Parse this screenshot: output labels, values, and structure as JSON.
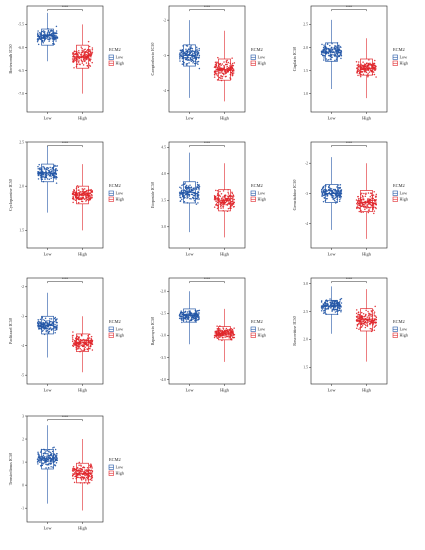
{
  "legend": {
    "title": "ECM2",
    "groups": [
      "Low",
      "High"
    ]
  },
  "colors": {
    "low": "#2457a6",
    "high": "#e0262b"
  },
  "chart_data": [
    {
      "type": "box",
      "ylabel": "Bortezomib IC50",
      "significance": "***",
      "categories": [
        "Low",
        "High"
      ],
      "ylim": [
        -7.4,
        -5.1
      ],
      "yticks": [
        -7.5,
        -7.0,
        -6.5,
        -6.0,
        -5.5
      ],
      "series": [
        {
          "name": "Low",
          "q1": -5.95,
          "median": -5.75,
          "q3": -5.6,
          "whisker_low": -6.3,
          "whisker_high": -5.25
        },
        {
          "name": "High",
          "q1": -6.45,
          "median": -6.2,
          "q3": -5.95,
          "whisker_low": -7.0,
          "whisker_high": -5.5
        }
      ]
    },
    {
      "type": "box",
      "ylabel": "Camptothecin IC50",
      "significance": "***",
      "categories": [
        "Low",
        "High"
      ],
      "ylim": [
        -4.6,
        -1.6
      ],
      "yticks": [
        -4,
        -3,
        -2
      ],
      "series": [
        {
          "name": "Low",
          "q1": -3.3,
          "median": -3.0,
          "q3": -2.7,
          "whisker_low": -4.2,
          "whisker_high": -2.0
        },
        {
          "name": "High",
          "q1": -3.7,
          "median": -3.4,
          "q3": -3.1,
          "whisker_low": -4.3,
          "whisker_high": -2.3
        }
      ]
    },
    {
      "type": "box",
      "ylabel": "Cisplatin IC50",
      "significance": "***",
      "categories": [
        "Low",
        "High"
      ],
      "ylim": [
        0.6,
        2.9
      ],
      "yticks": [
        1.0,
        1.5,
        2.0,
        2.5
      ],
      "series": [
        {
          "name": "Low",
          "q1": 1.7,
          "median": 1.9,
          "q3": 2.1,
          "whisker_low": 1.1,
          "whisker_high": 2.6
        },
        {
          "name": "High",
          "q1": 1.4,
          "median": 1.55,
          "q3": 1.75,
          "whisker_low": 0.9,
          "whisker_high": 2.2
        }
      ]
    },
    {
      "type": "box",
      "ylabel": "Cyclopamine IC50",
      "significance": "***",
      "categories": [
        "Low",
        "High"
      ],
      "ylim": [
        1.3,
        2.5
      ],
      "yticks": [
        1.5,
        2.0,
        2.5
      ],
      "series": [
        {
          "name": "Low",
          "q1": 2.05,
          "median": 2.15,
          "q3": 2.25,
          "whisker_low": 1.7,
          "whisker_high": 2.45
        },
        {
          "name": "High",
          "q1": 1.8,
          "median": 1.9,
          "q3": 2.0,
          "whisker_low": 1.5,
          "whisker_high": 2.25
        }
      ]
    },
    {
      "type": "box",
      "ylabel": "Etoposide IC50",
      "significance": "***",
      "categories": [
        "Low",
        "High"
      ],
      "ylim": [
        2.6,
        4.6
      ],
      "yticks": [
        3.0,
        3.5,
        4.0,
        4.5
      ],
      "series": [
        {
          "name": "Low",
          "q1": 3.45,
          "median": 3.65,
          "q3": 3.85,
          "whisker_low": 2.9,
          "whisker_high": 4.4
        },
        {
          "name": "High",
          "q1": 3.3,
          "median": 3.5,
          "q3": 3.7,
          "whisker_low": 2.8,
          "whisker_high": 4.2
        }
      ]
    },
    {
      "type": "box",
      "ylabel": "Gemcitabine IC50",
      "significance": "***",
      "categories": [
        "Low",
        "High"
      ],
      "ylim": [
        -4.8,
        -1.3
      ],
      "yticks": [
        -4,
        -3,
        -2
      ],
      "series": [
        {
          "name": "Low",
          "q1": -3.3,
          "median": -3.0,
          "q3": -2.7,
          "whisker_low": -4.2,
          "whisker_high": -1.8
        },
        {
          "name": "High",
          "q1": -3.6,
          "median": -3.3,
          "q3": -2.9,
          "whisker_low": -4.5,
          "whisker_high": -2.0
        }
      ]
    },
    {
      "type": "box",
      "ylabel": "Paclitaxel IC50",
      "significance": "***",
      "categories": [
        "Low",
        "High"
      ],
      "ylim": [
        -5.3,
        -1.7
      ],
      "yticks": [
        -5,
        -4,
        -3,
        -2
      ],
      "series": [
        {
          "name": "Low",
          "q1": -3.6,
          "median": -3.3,
          "q3": -3.0,
          "whisker_low": -4.4,
          "whisker_high": -2.2
        },
        {
          "name": "High",
          "q1": -4.2,
          "median": -3.9,
          "q3": -3.6,
          "whisker_low": -4.9,
          "whisker_high": -3.0
        }
      ]
    },
    {
      "type": "box",
      "ylabel": "Rapamycin IC50",
      "significance": "***",
      "categories": [
        "Low",
        "High"
      ],
      "ylim": [
        -4.1,
        -1.7
      ],
      "yticks": [
        -4.0,
        -3.5,
        -3.0,
        -2.5,
        -2.0
      ],
      "series": [
        {
          "name": "Low",
          "q1": -2.7,
          "median": -2.55,
          "q3": -2.4,
          "whisker_low": -3.2,
          "whisker_high": -2.0
        },
        {
          "name": "High",
          "q1": -3.1,
          "median": -2.95,
          "q3": -2.8,
          "whisker_low": -3.6,
          "whisker_high": -2.4
        }
      ]
    },
    {
      "type": "box",
      "ylabel": "Roscovitine IC50",
      "significance": "***",
      "categories": [
        "Low",
        "High"
      ],
      "ylim": [
        1.2,
        3.1
      ],
      "yticks": [
        1.5,
        2.0,
        2.5,
        3.0
      ],
      "series": [
        {
          "name": "Low",
          "q1": 2.45,
          "median": 2.6,
          "q3": 2.7,
          "whisker_low": 2.1,
          "whisker_high": 2.95
        },
        {
          "name": "High",
          "q1": 2.15,
          "median": 2.35,
          "q3": 2.55,
          "whisker_low": 1.6,
          "whisker_high": 2.9
        }
      ]
    },
    {
      "type": "box",
      "ylabel": "Temsirolimus IC50",
      "significance": "***",
      "categories": [
        "Low",
        "High"
      ],
      "ylim": [
        -1.6,
        3.0
      ],
      "yticks": [
        -1,
        0,
        1,
        2,
        3
      ],
      "series": [
        {
          "name": "Low",
          "q1": 0.7,
          "median": 1.15,
          "q3": 1.55,
          "whisker_low": -0.8,
          "whisker_high": 2.6
        },
        {
          "name": "High",
          "q1": 0.1,
          "median": 0.5,
          "q3": 0.95,
          "whisker_low": -1.1,
          "whisker_high": 2.0
        }
      ]
    }
  ]
}
